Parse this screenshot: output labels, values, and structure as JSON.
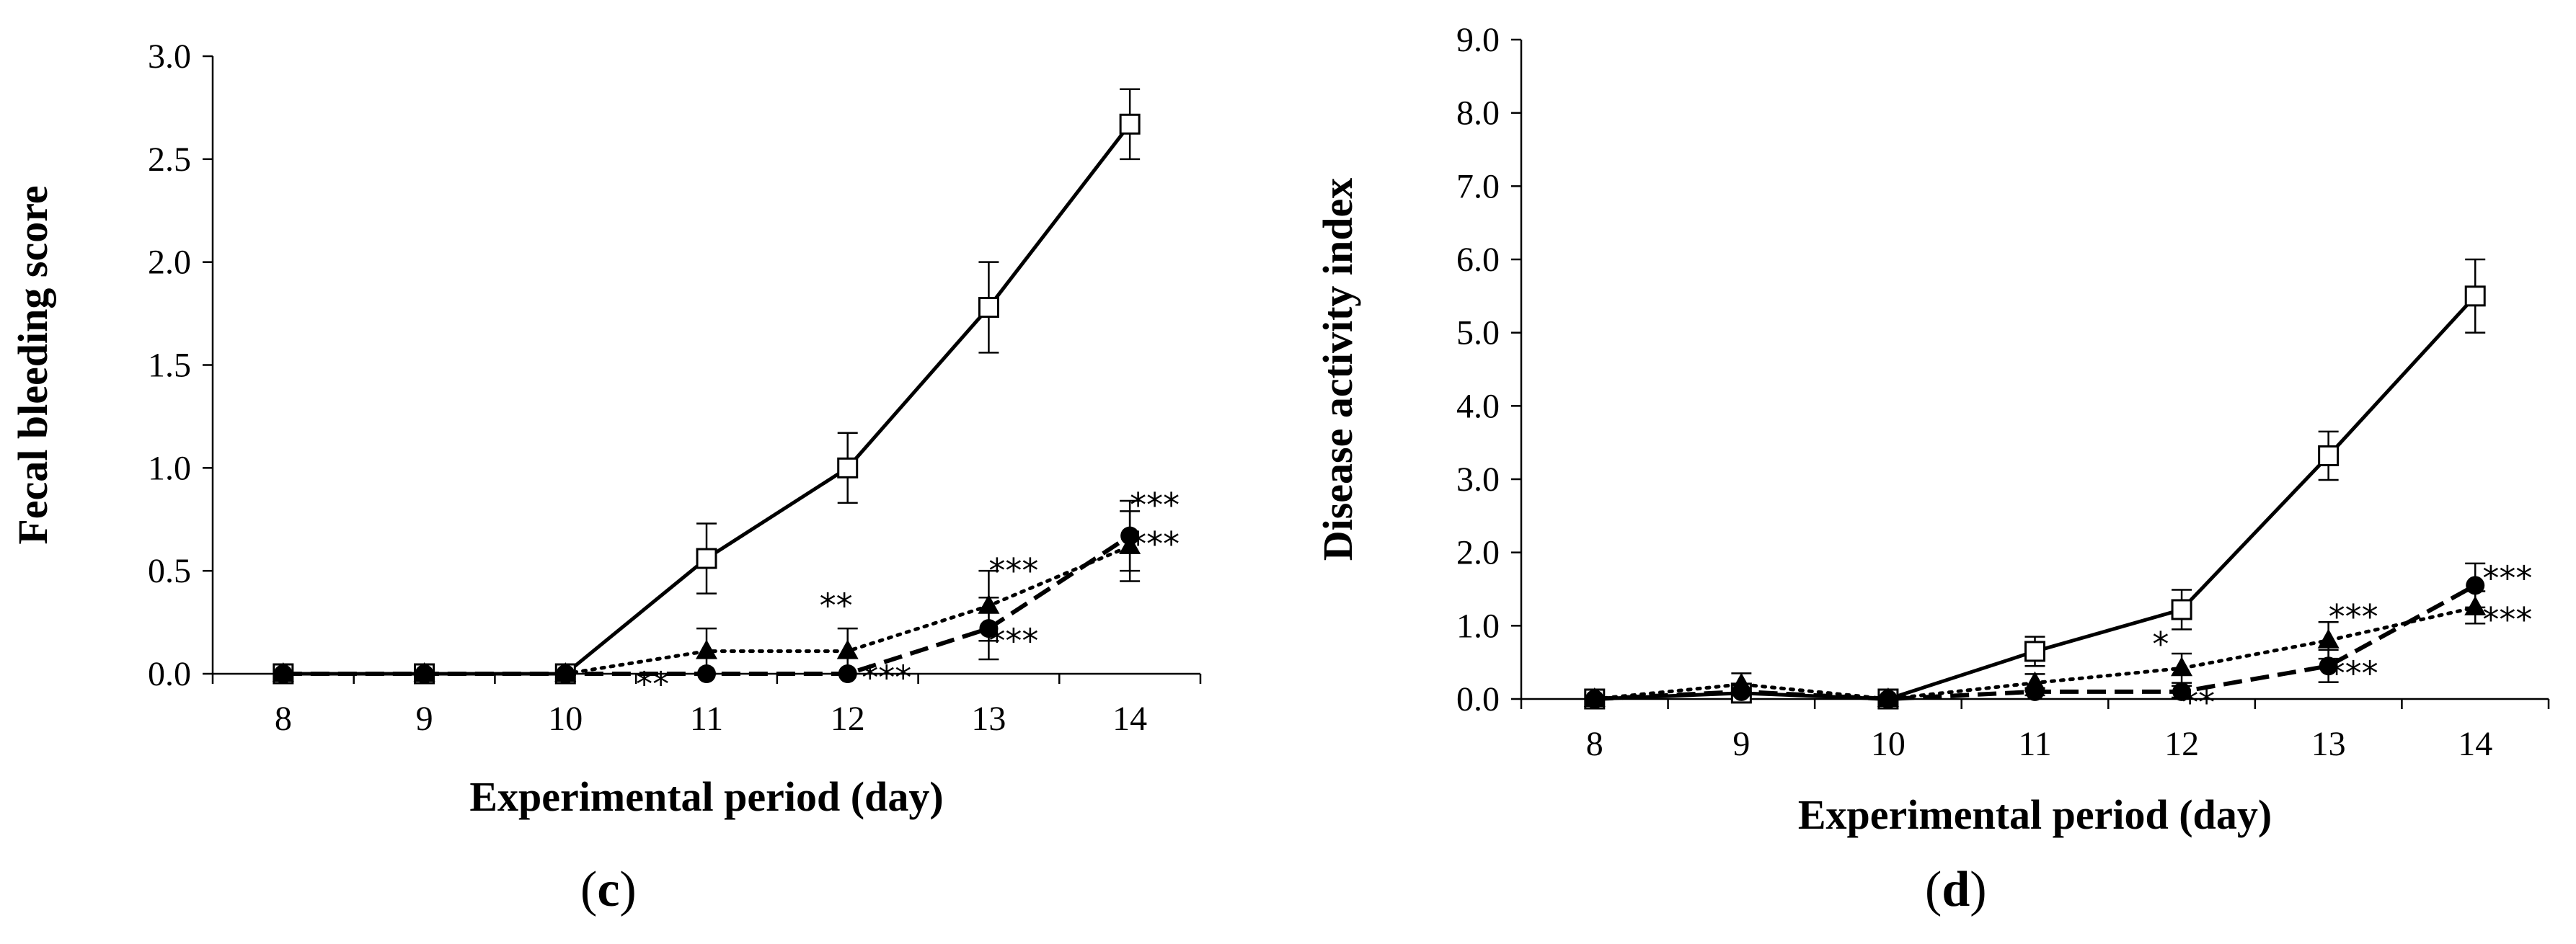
{
  "chart_data": [
    {
      "type": "line",
      "panel": "c",
      "xlabel": "Experimental period (day)",
      "ylabel": "Fecal bleeding score",
      "categories": [
        "8",
        "9",
        "10",
        "11",
        "12",
        "13",
        "14"
      ],
      "y_ticks": [
        "0.0",
        "0.5",
        "1.0",
        "1.5",
        "2.0",
        "2.5",
        "3.0"
      ],
      "ylim": [
        0,
        3
      ],
      "series": [
        {
          "name": "open-square-solid",
          "marker": "square-open",
          "line": "solid",
          "values": [
            0,
            0,
            0,
            0.56,
            1.0,
            1.78,
            2.67
          ],
          "errors": [
            0,
            0,
            0,
            0.17,
            0.17,
            0.22,
            0.17
          ]
        },
        {
          "name": "triangle-dotted",
          "marker": "triangle",
          "line": "dotted",
          "values": [
            0,
            0,
            0,
            0.11,
            0.11,
            0.33,
            0.62
          ],
          "errors": [
            0,
            0,
            0,
            0.11,
            0.11,
            0.17,
            0.17
          ]
        },
        {
          "name": "circle-dashed",
          "marker": "circle",
          "line": "dashed",
          "values": [
            0,
            0,
            0,
            0,
            0,
            0.22,
            0.67
          ],
          "errors": [
            0,
            0,
            0,
            0,
            0,
            0.15,
            0.17
          ]
        }
      ],
      "annotations": [
        {
          "text": "**",
          "x": 11,
          "y": -0.05
        },
        {
          "text": "**",
          "x": 12.3,
          "y": 0.33
        },
        {
          "text": "***",
          "x": 12.6,
          "y": -0.02
        },
        {
          "text": "***",
          "x": 13.5,
          "y": 0.5
        },
        {
          "text": "***",
          "x": 13.5,
          "y": 0.16
        },
        {
          "text": "***",
          "x": 14.5,
          "y": 0.82
        },
        {
          "text": "***",
          "x": 14.5,
          "y": 0.63
        }
      ],
      "panel_label": {
        "open": "(",
        "letter": "c",
        "close": ")"
      }
    },
    {
      "type": "line",
      "panel": "d",
      "xlabel": "Experimental period (day)",
      "ylabel": "Disease activity index",
      "categories": [
        "8",
        "9",
        "10",
        "11",
        "12",
        "13",
        "14"
      ],
      "y_ticks": [
        "0.0",
        "1.0",
        "2.0",
        "3.0",
        "4.0",
        "5.0",
        "6.0",
        "7.0",
        "8.0",
        "9.0"
      ],
      "ylim": [
        0,
        9
      ],
      "series": [
        {
          "name": "open-square-solid",
          "marker": "square-open",
          "line": "solid",
          "values": [
            0,
            0.08,
            0,
            0.65,
            1.22,
            3.32,
            5.5
          ],
          "errors": [
            0,
            0.08,
            0,
            0.2,
            0.27,
            0.33,
            0.5
          ]
        },
        {
          "name": "triangle-dotted",
          "marker": "triangle",
          "line": "dotted",
          "values": [
            0,
            0.2,
            0,
            0.22,
            0.42,
            0.8,
            1.25
          ],
          "errors": [
            0,
            0.15,
            0,
            0.12,
            0.2,
            0.25,
            0.22
          ]
        },
        {
          "name": "circle-dashed",
          "marker": "circle",
          "line": "dashed",
          "values": [
            0,
            0.1,
            0,
            0.1,
            0.1,
            0.45,
            1.55
          ],
          "errors": [
            0,
            0.05,
            0,
            0.05,
            0.08,
            0.22,
            0.3
          ]
        }
      ],
      "annotations": [
        {
          "text": "*",
          "x": 12.3,
          "y": 0.75
        },
        {
          "text": "***",
          "x": 13.5,
          "y": 1.12
        },
        {
          "text": "***",
          "x": 13.5,
          "y": 0.35
        },
        {
          "text": "**",
          "x": 12.5,
          "y": -0.05
        },
        {
          "text": "***",
          "x": 14.55,
          "y": 1.65
        },
        {
          "text": "***",
          "x": 14.55,
          "y": 1.08
        }
      ],
      "panel_label": {
        "open": "(",
        "letter": "d",
        "close": ")"
      }
    }
  ]
}
